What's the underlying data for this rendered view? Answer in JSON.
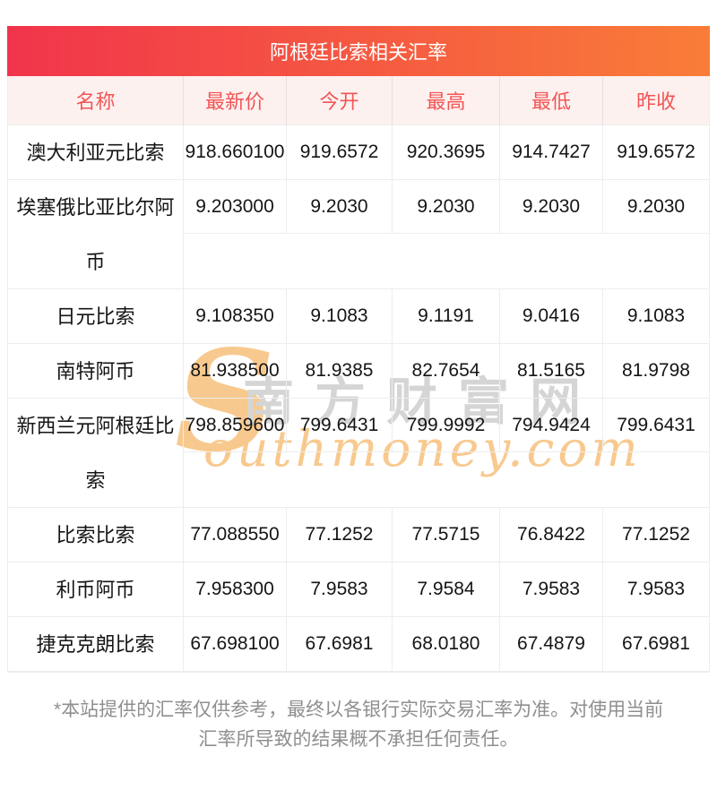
{
  "title_bar": {
    "text": "阿根廷比索相关汇率"
  },
  "table": {
    "columns": [
      "名称",
      "最新价",
      "今开",
      "最高",
      "最低",
      "昨收"
    ],
    "rows": [
      {
        "name": "澳大利亚元比索",
        "values": [
          "918.660100",
          "919.6572",
          "920.3695",
          "914.7427",
          "919.6572"
        ]
      },
      {
        "name": "埃塞俄比亚比尔阿币",
        "values": [
          "9.203000",
          "9.2030",
          "9.2030",
          "9.2030",
          "9.2030"
        ]
      },
      {
        "name": "日元比索",
        "values": [
          "9.108350",
          "9.1083",
          "9.1191",
          "9.0416",
          "9.1083"
        ]
      },
      {
        "name": "南特阿币",
        "values": [
          "81.938500",
          "81.9385",
          "82.7654",
          "81.5165",
          "81.9798"
        ]
      },
      {
        "name": "新西兰元阿根廷比索",
        "values": [
          "798.859600",
          "799.6431",
          "799.9992",
          "794.9424",
          "799.6431"
        ]
      },
      {
        "name": "比索比索",
        "values": [
          "77.088550",
          "77.1252",
          "77.5715",
          "76.8422",
          "77.1252"
        ]
      },
      {
        "name": "利币阿币",
        "values": [
          "7.958300",
          "7.9583",
          "7.9584",
          "7.9583",
          "7.9583"
        ]
      },
      {
        "name": "捷克克朗比索",
        "values": [
          "67.698100",
          "67.6981",
          "68.0180",
          "67.4879",
          "67.6981"
        ]
      }
    ]
  },
  "watermark": {
    "s": "S",
    "cn": "南方财富网",
    "en": "outhmoney.com"
  },
  "footer": {
    "line1": "*本站提供的汇率仅供参考，最终以各银行实际交易汇率为准。对使用当前",
    "line2": "汇率所导致的结果概不承担任何责任。"
  },
  "colors": {
    "title_gradient_start": "#f1344b",
    "title_gradient_end": "#f97d38",
    "header_bg": "#fdf1f0",
    "header_text": "#f25555",
    "border": "#ededed",
    "body_text": "#151515",
    "footer_text": "#8f8f8f",
    "watermark_orange": "#f8c98e",
    "watermark_gray": "#d5d5d5"
  }
}
